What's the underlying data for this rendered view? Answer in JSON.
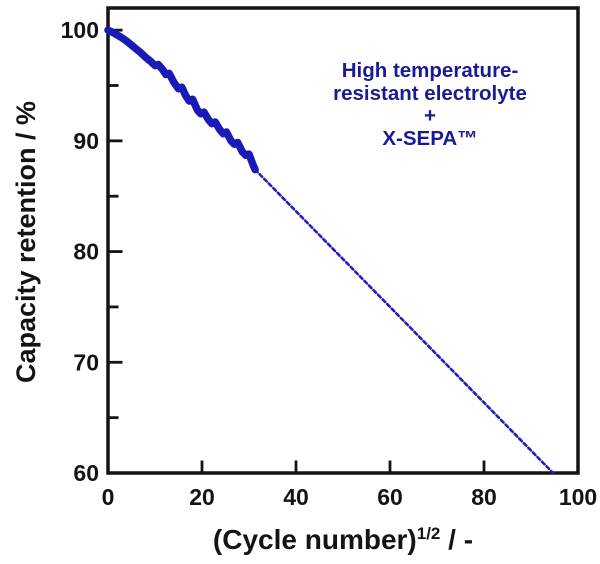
{
  "chart_data": {
    "type": "line",
    "title": "",
    "xlabel": {
      "base": "(Cycle number)",
      "sup": "1/2",
      "suffix": " / -"
    },
    "ylabel": "Capacity retention / %",
    "xlim": [
      0,
      100
    ],
    "ylim": [
      60,
      102
    ],
    "grid": false,
    "legend_position": "none",
    "axis_color": "#141414",
    "tick_label_font_px": 23,
    "x_tick_labels": [
      0,
      20,
      40,
      60,
      80,
      100
    ],
    "x_tick_marks": [
      20,
      40,
      60,
      80
    ],
    "y_tick_labels": [
      100,
      90,
      80,
      70,
      60
    ],
    "y_tick_minor_start": 60,
    "y_tick_minor_end": 100,
    "y_tick_minor_step": 5,
    "series": [
      {
        "name": "measured-capacity-retention",
        "line_style": "solid",
        "color": "#1a1ab8",
        "stroke_width": 7.5,
        "points": [
          [
            0,
            100.0
          ],
          [
            1,
            99.8
          ],
          [
            2,
            99.55
          ],
          [
            3,
            99.3
          ],
          [
            4,
            99.0
          ],
          [
            5,
            98.65
          ],
          [
            6,
            98.3
          ],
          [
            7,
            97.95
          ],
          [
            8,
            97.55
          ],
          [
            9,
            97.2
          ],
          [
            10,
            96.8
          ],
          [
            10.7,
            96.9
          ],
          [
            11.5,
            96.5
          ],
          [
            12.3,
            96.0
          ],
          [
            13,
            96.1
          ],
          [
            14,
            95.3
          ],
          [
            15,
            94.7
          ],
          [
            15.7,
            94.85
          ],
          [
            16.5,
            94.1
          ],
          [
            17.3,
            93.6
          ],
          [
            18,
            93.75
          ],
          [
            19,
            92.8
          ],
          [
            19.7,
            92.45
          ],
          [
            20.4,
            92.6
          ],
          [
            21.4,
            91.9
          ],
          [
            22.1,
            91.55
          ],
          [
            22.8,
            91.7
          ],
          [
            23.8,
            91.0
          ],
          [
            24.5,
            90.65
          ],
          [
            25.2,
            90.8
          ],
          [
            26.2,
            90.0
          ],
          [
            26.9,
            89.7
          ],
          [
            27.6,
            89.85
          ],
          [
            28.6,
            89.0
          ],
          [
            29.3,
            88.7
          ],
          [
            30,
            88.8
          ],
          [
            30.9,
            87.8
          ],
          [
            31.3,
            87.4
          ]
        ]
      },
      {
        "name": "linear-extrapolation",
        "line_style": "dashed",
        "color": "#2020b8",
        "stroke_width": 2.6,
        "points": [
          [
            31.3,
            87.4
          ],
          [
            94.7,
            60.0
          ]
        ]
      }
    ],
    "annotation": {
      "color": "#1a1a94",
      "lines": [
        "High temperature-",
        "resistant electrolyte",
        "+",
        "X-SEPA™"
      ]
    }
  }
}
